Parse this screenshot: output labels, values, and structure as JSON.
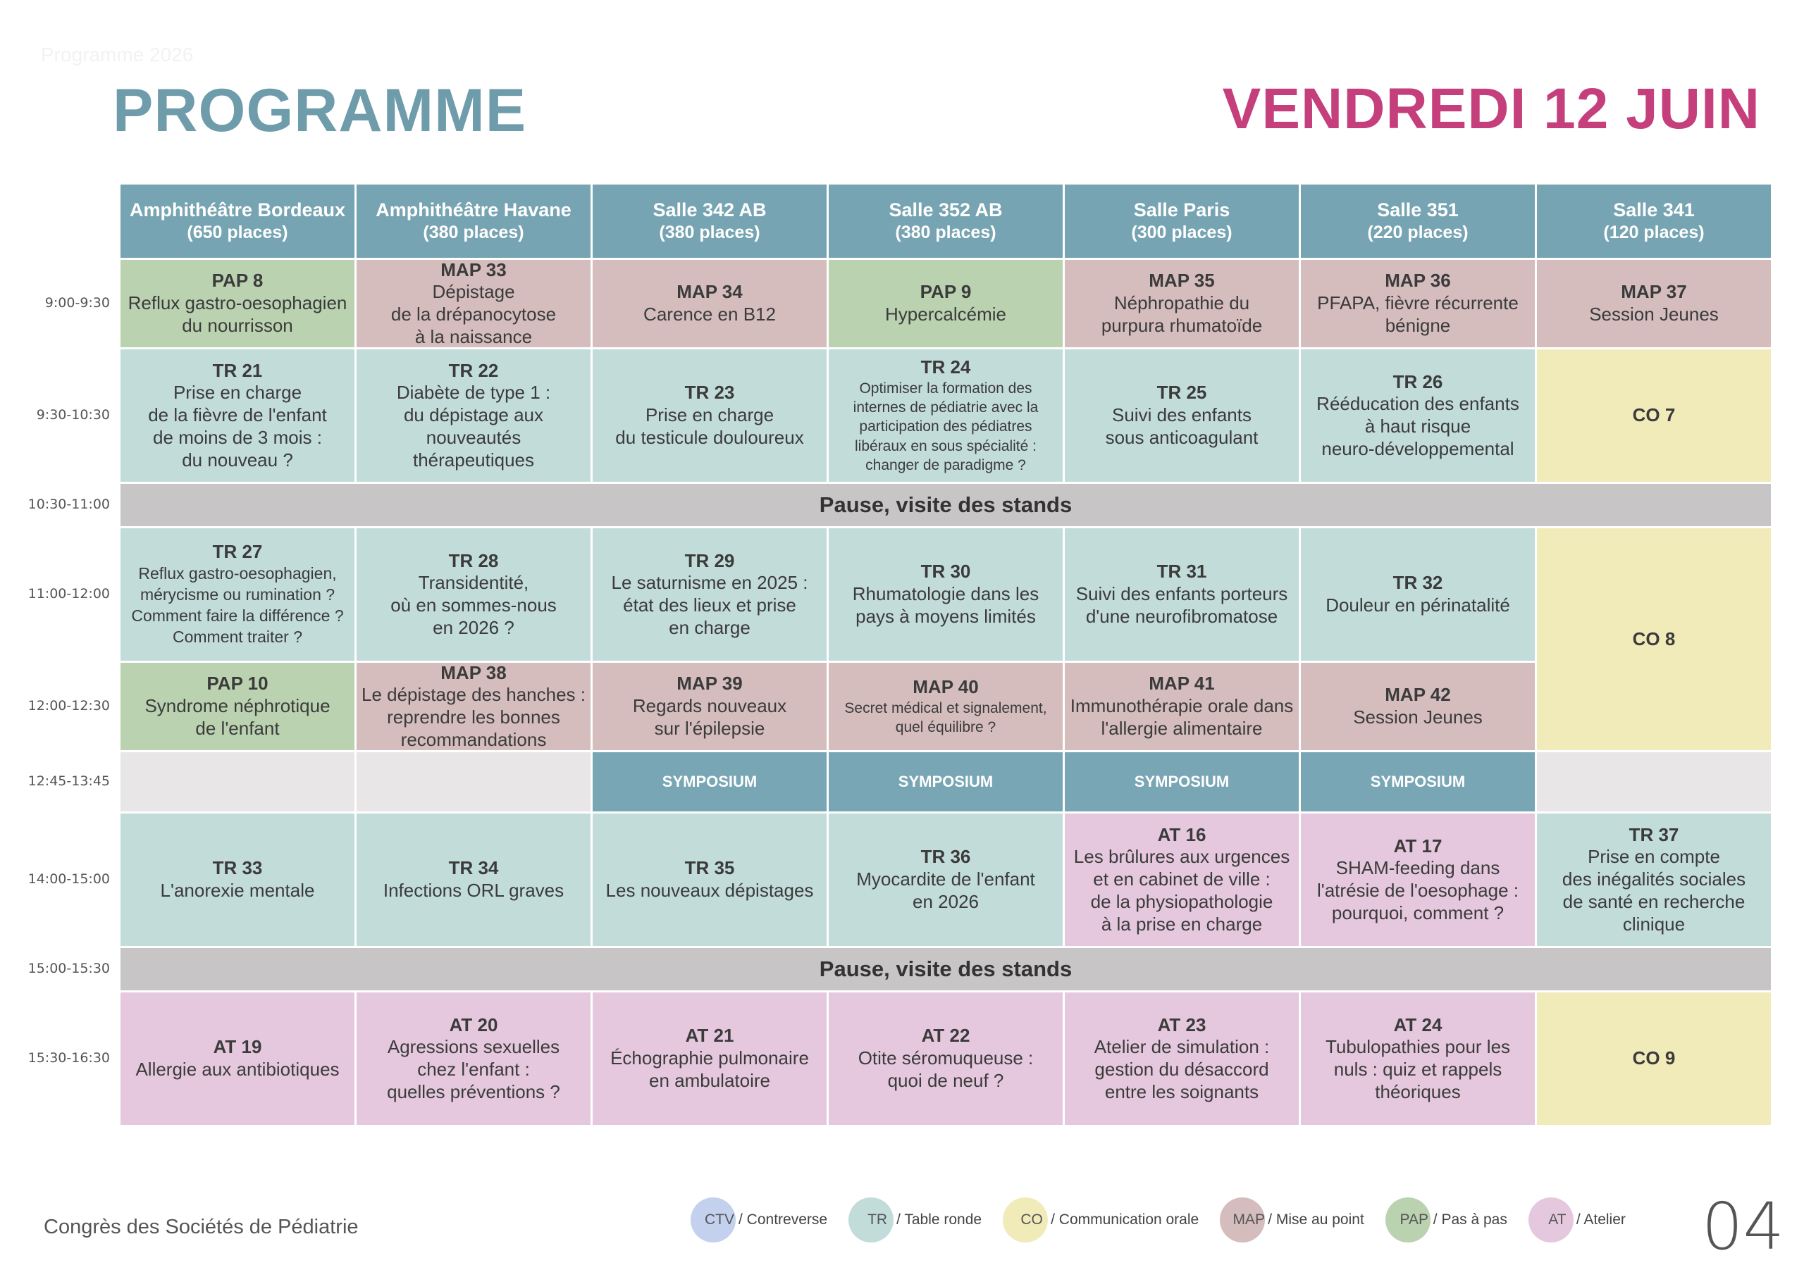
{
  "document": {
    "faint_header": "Programme 2026",
    "title": "PROGRAMME",
    "date": "VENDREDI 12 JUIN",
    "footer": "Congrès des Sociétés de Pédiatrie",
    "page_number": "04"
  },
  "rooms": [
    {
      "name": "Amphithéâtre Bordeaux",
      "capacity": "(650 places)"
    },
    {
      "name": "Amphithéâtre Havane",
      "capacity": "(380 places)"
    },
    {
      "name": "Salle 342 AB",
      "capacity": "(380 places)"
    },
    {
      "name": "Salle 352 AB",
      "capacity": "(380 places)"
    },
    {
      "name": "Salle Paris",
      "capacity": "(300 places)"
    },
    {
      "name": "Salle 351",
      "capacity": "(220 places)"
    },
    {
      "name": "Salle 341",
      "capacity": "(120 places)"
    }
  ],
  "times": [
    "9:00-9:30",
    "9:30-10:30",
    "10:30-11:00",
    "11:00-12:00",
    "12:00-12:30",
    "12:45-13:45",
    "14:00-15:00",
    "15:00-15:30",
    "15:30-16:30"
  ],
  "pause_label": "Pause, visite des stands",
  "symposium_label": "SYMPOSIUM",
  "sessions": {
    "r1": [
      {
        "type": "PAP",
        "code": "PAP 8",
        "desc": "Reflux gastro-oesophagien\ndu nourrisson"
      },
      {
        "type": "MAP",
        "code": "MAP 33",
        "desc": "Dépistage\nde la drépanocytose\nà la naissance"
      },
      {
        "type": "MAP",
        "code": "MAP 34",
        "desc": "Carence en B12"
      },
      {
        "type": "PAP",
        "code": "PAP 9",
        "desc": "Hypercalcémie"
      },
      {
        "type": "MAP",
        "code": "MAP 35",
        "desc": "Néphropathie du\npurpura rhumatoïde"
      },
      {
        "type": "MAP",
        "code": "MAP 36",
        "desc": "PFAPA, fièvre récurrente\nbénigne"
      },
      {
        "type": "MAP",
        "code": "MAP 37",
        "desc": "Session Jeunes"
      }
    ],
    "r2": [
      {
        "type": "TR",
        "code": "TR 21",
        "desc": "Prise en charge\nde la fièvre de l'enfant\nde moins de 3 mois :\ndu nouveau ?"
      },
      {
        "type": "TR",
        "code": "TR 22",
        "desc": "Diabète de type 1 :\ndu dépistage aux\nnouveautés\nthérapeutiques"
      },
      {
        "type": "TR",
        "code": "TR 23",
        "desc": "Prise en charge\ndu testicule douloureux"
      },
      {
        "type": "TR",
        "code": "TR 24",
        "desc": "Optimiser la formation des\ninternes de pédiatrie avec la\nparticipation des pédiatres\nlibéraux en sous spécialité :\nchanger de paradigme ?"
      },
      {
        "type": "TR",
        "code": "TR 25",
        "desc": "Suivi des enfants\nsous anticoagulant"
      },
      {
        "type": "TR",
        "code": "TR 26",
        "desc": "Rééducation des enfants\nà haut risque\nneuro-développemental"
      },
      {
        "type": "CO",
        "code": "CO 7",
        "desc": ""
      }
    ],
    "r4": [
      {
        "type": "TR",
        "code": "TR 27",
        "desc": "Reflux gastro-oesophagien,\nmérycisme ou rumination ?\nComment faire la différence ?\nComment traiter ?"
      },
      {
        "type": "TR",
        "code": "TR 28",
        "desc": "Transidentité,\noù en sommes-nous\nen 2026 ?"
      },
      {
        "type": "TR",
        "code": "TR 29",
        "desc": "Le saturnisme en 2025 :\nétat des lieux et prise\nen charge"
      },
      {
        "type": "TR",
        "code": "TR 30",
        "desc": "Rhumatologie dans les\npays à moyens limités"
      },
      {
        "type": "TR",
        "code": "TR 31",
        "desc": "Suivi des enfants porteurs\nd'une neurofibromatose"
      },
      {
        "type": "TR",
        "code": "TR 32",
        "desc": "Douleur en périnatalité"
      },
      {
        "type": "CO",
        "code": "CO 8",
        "desc": ""
      }
    ],
    "r5": [
      {
        "type": "PAP",
        "code": "PAP 10",
        "desc": "Syndrome néphrotique\nde l'enfant"
      },
      {
        "type": "MAP",
        "code": "MAP 38",
        "desc": "Le dépistage des hanches :\nreprendre les bonnes\nrecommandations"
      },
      {
        "type": "MAP",
        "code": "MAP 39",
        "desc": "Regards nouveaux\nsur l'épilepsie"
      },
      {
        "type": "MAP",
        "code": "MAP 40",
        "desc": "Secret médical et signalement,\nquel équilibre ?"
      },
      {
        "type": "MAP",
        "code": "MAP 41",
        "desc": "Immunothérapie orale dans\nl'allergie alimentaire"
      },
      {
        "type": "MAP",
        "code": "MAP 42",
        "desc": "Session Jeunes"
      }
    ],
    "r7": [
      {
        "type": "TR",
        "code": "TR 33",
        "desc": "L'anorexie mentale"
      },
      {
        "type": "TR",
        "code": "TR 34",
        "desc": "Infections ORL graves"
      },
      {
        "type": "TR",
        "code": "TR 35",
        "desc": "Les nouveaux dépistages"
      },
      {
        "type": "TR",
        "code": "TR 36",
        "desc": "Myocardite de l'enfant\nen 2026"
      },
      {
        "type": "AT",
        "code": "AT 16",
        "desc": "Les brûlures aux urgences\net en cabinet de ville :\nde la physiopathologie\nà la prise en charge"
      },
      {
        "type": "AT",
        "code": "AT 17",
        "desc": "SHAM-feeding dans\nl'atrésie de l'oesophage :\npourquoi, comment ?"
      },
      {
        "type": "TR",
        "code": "TR 37",
        "desc": "Prise en compte\ndes inégalités sociales\nde santé en recherche\nclinique"
      }
    ],
    "r9": [
      {
        "type": "AT",
        "code": "AT 19",
        "desc": "Allergie aux antibiotiques"
      },
      {
        "type": "AT",
        "code": "AT 20",
        "desc": "Agressions sexuelles\nchez l'enfant :\nquelles préventions ?"
      },
      {
        "type": "AT",
        "code": "AT 21",
        "desc": "Échographie pulmonaire\nen ambulatoire"
      },
      {
        "type": "AT",
        "code": "AT 22",
        "desc": "Otite séromuqueuse :\nquoi de neuf ?"
      },
      {
        "type": "AT",
        "code": "AT 23",
        "desc": "Atelier de simulation :\ngestion du désaccord\nentre les soignants"
      },
      {
        "type": "AT",
        "code": "AT 24",
        "desc": "Tubulopathies pour les\nnuls : quiz et rappels\nthéoriques"
      },
      {
        "type": "CO",
        "code": "CO 9",
        "desc": ""
      }
    ]
  },
  "legend": [
    {
      "abbr": "CTV",
      "label": " / Contreverse",
      "color": "#c3d1ee"
    },
    {
      "abbr": "TR",
      "label": " / Table ronde",
      "color": "#c2dcda"
    },
    {
      "abbr": "CO",
      "label": " / Communication orale",
      "color": "#f1ebba"
    },
    {
      "abbr": "MAP",
      "label": " / Mise au point",
      "color": "#d5bcbd"
    },
    {
      "abbr": "PAP",
      "label": " / Pas à pas",
      "color": "#bad2b0"
    },
    {
      "abbr": "AT",
      "label": " / Atelier",
      "color": "#e5c8de"
    }
  ],
  "colors": {
    "title": "#6f9cab",
    "date": "#c43f7b",
    "header_bg": "#77a4b2",
    "pause_bg": "#c7c5c6",
    "symposium_bg": "#79a6b4"
  }
}
